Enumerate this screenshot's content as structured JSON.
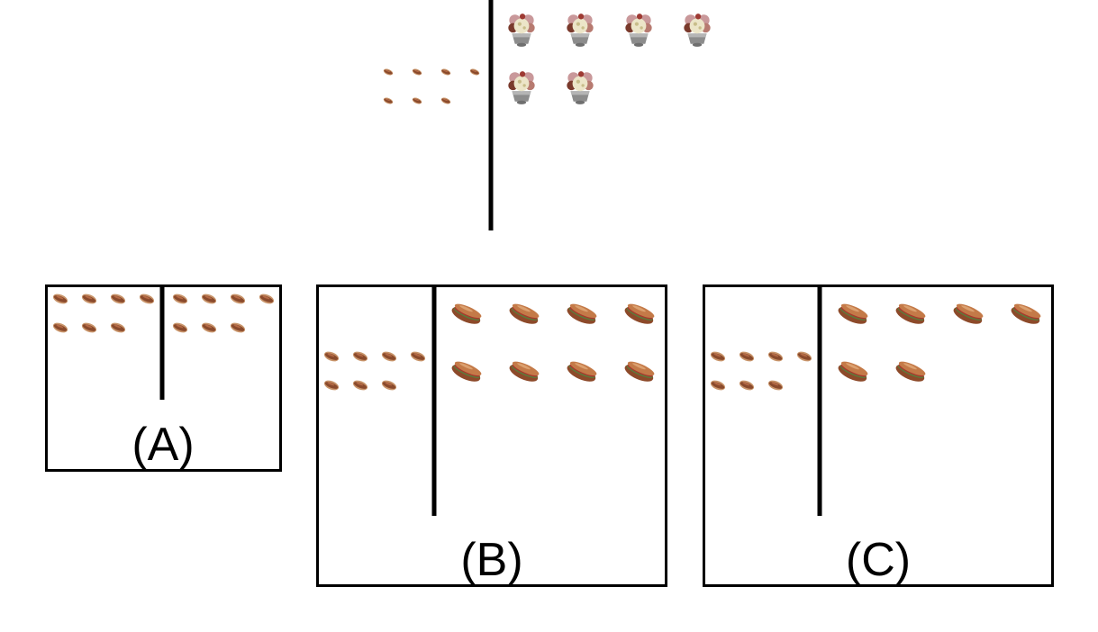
{
  "colors": {
    "divider": "#000000",
    "frame": "#000000",
    "background": "#ffffff"
  },
  "icons": {
    "small_left": "hot-dog-icon",
    "top_right": "ice-cream-sundae-icon",
    "option_right": "sub-sandwich-icon"
  },
  "top_figure": {
    "left_item": "hot-dog-icon",
    "left_count": 7,
    "left_rows": [
      4,
      3
    ],
    "right_item": "ice-cream-sundae-icon",
    "right_count": 6,
    "right_rows": [
      4,
      2
    ]
  },
  "options": [
    {
      "label": "(A)",
      "left_item": "hot-dog-icon",
      "left_count": 7,
      "left_rows": [
        4,
        3
      ],
      "right_item": "hot-dog-icon",
      "right_count": 7,
      "right_rows": [
        4,
        3
      ]
    },
    {
      "label": "(B)",
      "left_item": "hot-dog-icon",
      "left_count": 7,
      "left_rows": [
        4,
        3
      ],
      "right_item": "sub-sandwich-icon",
      "right_count": 8,
      "right_rows": [
        4,
        4
      ]
    },
    {
      "label": "(C)",
      "left_item": "hot-dog-icon",
      "left_count": 7,
      "left_rows": [
        4,
        3
      ],
      "right_item": "sub-sandwich-icon",
      "right_count": 6,
      "right_rows": [
        4,
        2
      ]
    }
  ]
}
